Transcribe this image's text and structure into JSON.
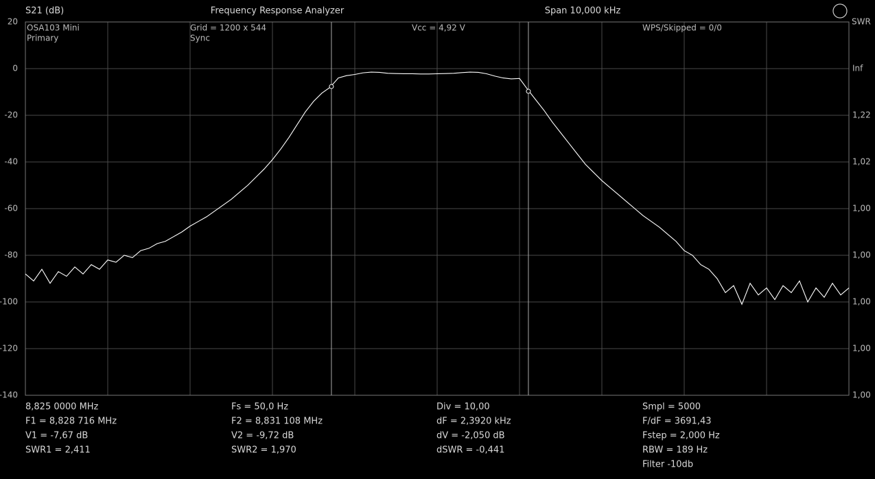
{
  "header": {
    "left": "S21 (dB)",
    "center": "Frequency Response Analyzer",
    "right": "Span 10,000 kHz"
  },
  "overlay": {
    "device": "OSA103 Mini",
    "mode": "Primary",
    "grid": "Grid = 1200 x 544",
    "sync": "Sync",
    "vcc": "Vcc = 4,92 V",
    "wps": "WPS/Skipped  = 0/0"
  },
  "chart_data": {
    "type": "line",
    "xlim": [
      8.825,
      8.835
    ],
    "ylim": [
      -140,
      20
    ],
    "yticks": [
      20,
      0,
      -20,
      -40,
      -60,
      -80,
      -100,
      -120,
      -140
    ],
    "grid": true,
    "y2title": "SWR",
    "y2labels": [
      "Inf",
      "1,22",
      "1,02",
      "1,00",
      "1,00",
      "1,00",
      "1,00",
      "1,00"
    ],
    "x": [
      8.825,
      8.8251,
      8.8252,
      8.8253,
      8.8254,
      8.8255,
      8.8256,
      8.8257,
      8.8258,
      8.8259,
      8.826,
      8.8261,
      8.8262,
      8.8263,
      8.8264,
      8.8265,
      8.8266,
      8.8267,
      8.8268,
      8.8269,
      8.827,
      8.8271,
      8.8272,
      8.8273,
      8.8274,
      8.8275,
      8.8276,
      8.8277,
      8.8278,
      8.8279,
      8.828,
      8.8281,
      8.8282,
      8.8283,
      8.8284,
      8.8285,
      8.8286,
      8.8287,
      8.8288,
      8.8289,
      8.829,
      8.8291,
      8.8292,
      8.8293,
      8.8294,
      8.8295,
      8.8296,
      8.8297,
      8.8298,
      8.8299,
      8.83,
      8.8301,
      8.8302,
      8.8303,
      8.8304,
      8.8305,
      8.8306,
      8.8307,
      8.8308,
      8.8309,
      8.831,
      8.8311,
      8.8312,
      8.8313,
      8.8314,
      8.8315,
      8.8316,
      8.8317,
      8.8318,
      8.8319,
      8.832,
      8.8321,
      8.8322,
      8.8323,
      8.8324,
      8.8325,
      8.8326,
      8.8327,
      8.8328,
      8.8329,
      8.833,
      8.8331,
      8.8332,
      8.8333,
      8.8334,
      8.8335,
      8.8336,
      8.8337,
      8.8338,
      8.8339,
      8.834,
      8.8341,
      8.8342,
      8.8343,
      8.8344,
      8.8345,
      8.8346,
      8.8347,
      8.8348,
      8.8349,
      8.835
    ],
    "series": [
      {
        "color": "#ffffff",
        "values": [
          -88,
          -91,
          -86,
          -92,
          -87,
          -89,
          -85,
          -88,
          -84,
          -86,
          -82,
          -83,
          -80,
          -81,
          -78,
          -77,
          -75,
          -74,
          -72,
          -70,
          -67.5,
          -65.5,
          -63.5,
          -61,
          -58.5,
          -56,
          -53,
          -50,
          -46.5,
          -43,
          -39,
          -34.5,
          -29.5,
          -24,
          -18.5,
          -14,
          -10.5,
          -8,
          -4,
          -3,
          -2.5,
          -1.8,
          -1.5,
          -1.6,
          -2,
          -2.1,
          -2.2,
          -2.2,
          -2.3,
          -2.3,
          -2.2,
          -2.1,
          -2,
          -1.7,
          -1.5,
          -1.6,
          -2.2,
          -3.2,
          -4,
          -4.4,
          -4.2,
          -9,
          -13.5,
          -18,
          -23,
          -27.5,
          -32,
          -36.5,
          -41,
          -44.5,
          -48,
          -51,
          -54,
          -57,
          -60,
          -63,
          -65.5,
          -68,
          -71,
          -74,
          -78,
          -80,
          -84,
          -86,
          -90,
          -96,
          -93,
          -101,
          -92,
          -97,
          -94,
          -99,
          -93,
          -96,
          -91,
          -100,
          -94,
          -98,
          -92,
          -97,
          -94
        ]
      }
    ],
    "markers": [
      {
        "x": 8.828716,
        "y": -7.67
      },
      {
        "x": 8.831108,
        "y": -9.72
      }
    ]
  },
  "footer": [
    [
      "8,825 0000 MHz",
      "F1 = 8,828 716 MHz",
      "V1 = -7,67 dB",
      "SWR1 = 2,411"
    ],
    [
      "Fs = 50,0 Hz",
      "F2 = 8,831 108 MHz",
      "V2 = -9,72 dB",
      "SWR2 = 1,970"
    ],
    [
      "Div = 10,00",
      "dF = 2,3920 kHz",
      "dV = -2,050 dB",
      "dSWR = -0,441"
    ],
    [
      "Smpl = 5000",
      "F/dF = 3691,43",
      "Fstep = 2,000 Hz",
      "RBW = 189 Hz",
      "Filter -10db"
    ]
  ]
}
